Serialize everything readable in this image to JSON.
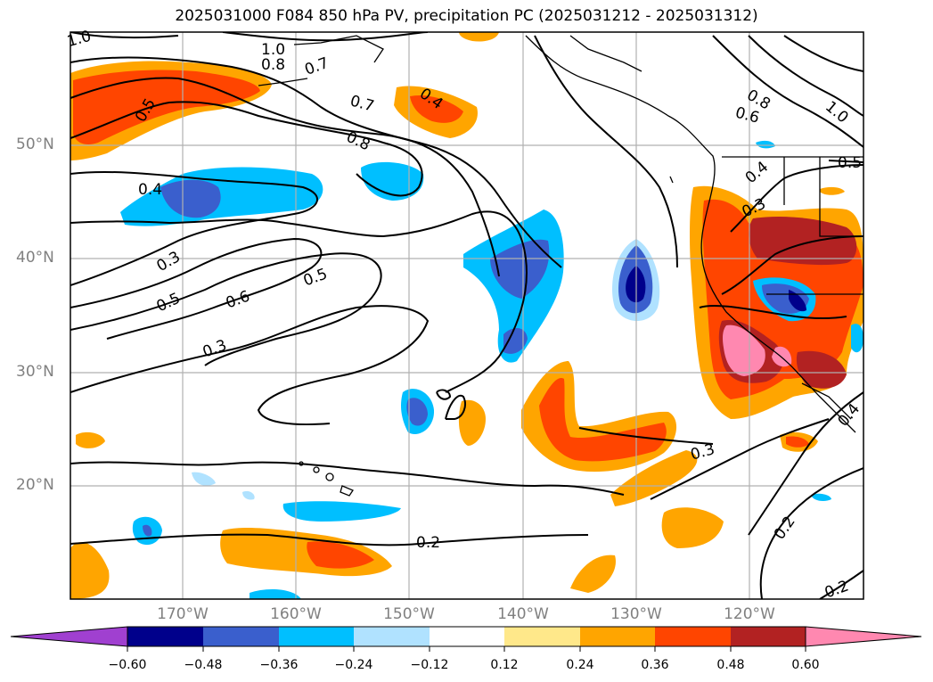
{
  "title": "2025031000 F084 850 hPa PV, precipitation PC (2025031212 - 2025031312)",
  "lat_labels": [
    "50°N",
    "40°N",
    "30°N",
    "20°N"
  ],
  "lon_labels": [
    "170°W",
    "160°W",
    "150°W",
    "140°W",
    "130°W",
    "120°W"
  ],
  "colorbar": {
    "tick_labels": [
      "−0.60",
      "−0.48",
      "−0.36",
      "−0.24",
      "−0.12",
      "0.12",
      "0.24",
      "0.36",
      "0.48",
      "0.60"
    ],
    "colors": [
      "#a040d0",
      "#00008b",
      "#3a5fcd",
      "#00bfff",
      "#b0e2ff",
      "#ffffff",
      "#ffe88a",
      "#ffa500",
      "#ff4500",
      "#b22222",
      "#ff88b0"
    ]
  },
  "contour_labels": [
    "1.0",
    "1.0",
    "0.8",
    "0.7",
    "0.5",
    "0.7",
    "0.4",
    "0.8",
    "0.4",
    "0.3",
    "0.5",
    "0.6",
    "0.5",
    "0.3",
    "0.2",
    "0.3",
    "0.2",
    "0.2",
    "0.8",
    "0.6",
    "1.0",
    "0.5",
    "0.4",
    "0.3",
    "0.4"
  ],
  "colors": {
    "coast": "#000000",
    "grid": "#b0b0b0"
  }
}
